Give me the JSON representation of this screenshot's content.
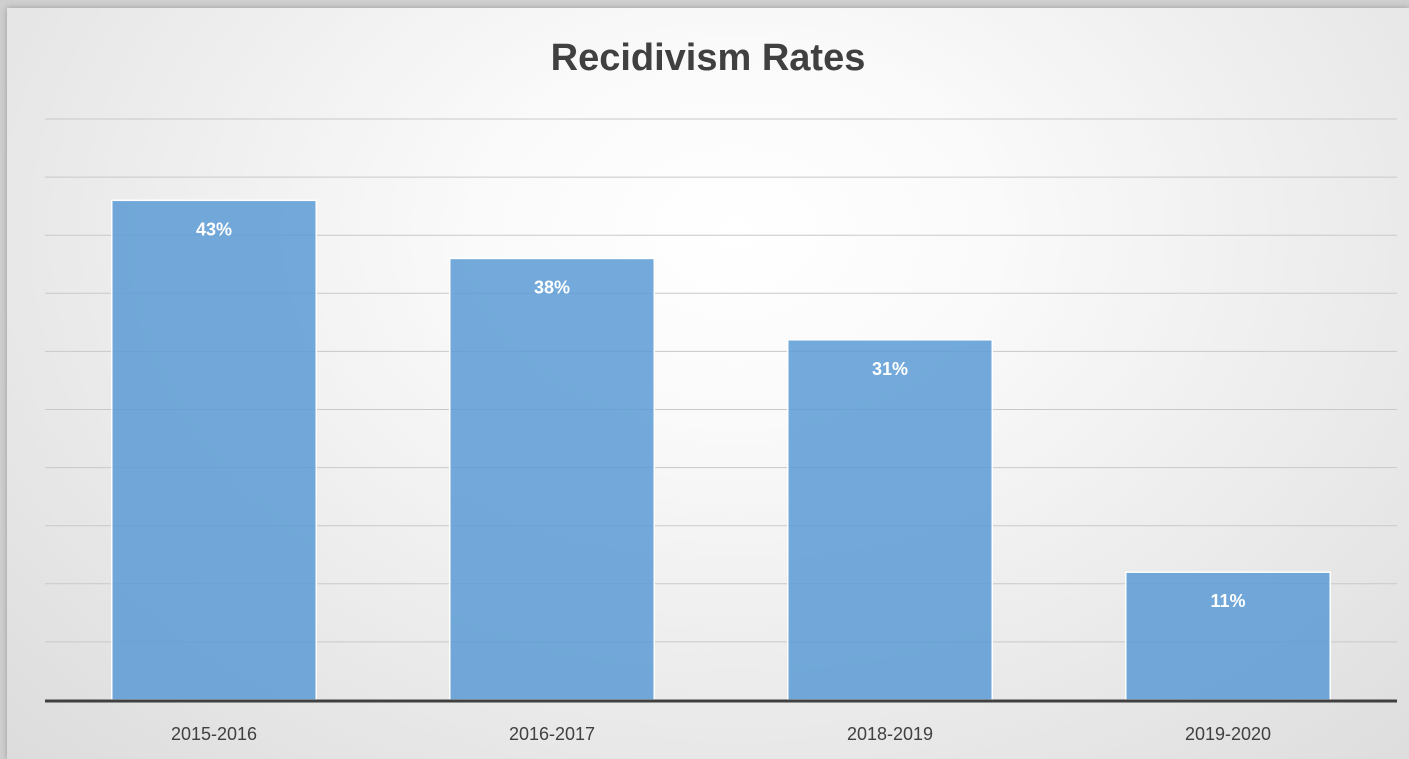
{
  "chart_data": {
    "type": "bar",
    "title": "Recidivism Rates",
    "categories": [
      "2015-2016",
      "2016-2017",
      "2018-2019",
      "2019-2020"
    ],
    "values": [
      43,
      38,
      31,
      11
    ],
    "data_labels": [
      "43%",
      "38%",
      "31%",
      "11%"
    ],
    "ylim": [
      0,
      50
    ],
    "grid_step": 5,
    "grid": true,
    "y_axis_labels_visible": false,
    "legend": "none",
    "bar_color": "#5b9bd5"
  }
}
